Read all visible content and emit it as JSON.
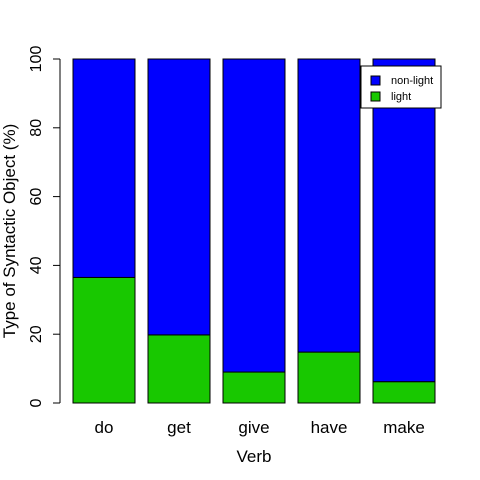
{
  "chart_data": {
    "type": "bar",
    "stacked": true,
    "categories": [
      "do",
      "get",
      "give",
      "have",
      "make"
    ],
    "series": [
      {
        "name": "light",
        "color": "#18c800",
        "values": [
          36.5,
          19.8,
          9.0,
          14.8,
          6.2
        ]
      },
      {
        "name": "non-light",
        "color": "#0000ff",
        "values": [
          63.5,
          80.2,
          91.0,
          85.2,
          93.8
        ]
      }
    ],
    "title": "",
    "xlabel": "Verb",
    "ylabel": "Type of Syntactic Object (%)",
    "ylim": [
      0,
      100
    ],
    "yticks": [
      "0",
      "20",
      "40",
      "60",
      "80",
      "100"
    ],
    "legend": {
      "position": "top-right",
      "entries": [
        {
          "label": "non-light",
          "color": "#0000ff"
        },
        {
          "label": "light",
          "color": "#18c800"
        }
      ]
    },
    "grid": false
  }
}
